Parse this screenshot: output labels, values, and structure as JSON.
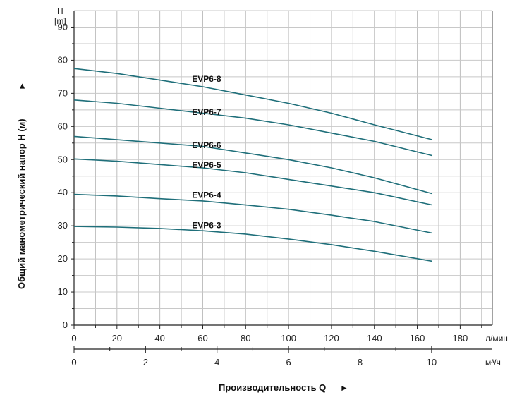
{
  "chart_data": {
    "type": "line",
    "title": "",
    "xlabel": "Производительность Q",
    "ylabel": "Общий манометрический напор H (м)",
    "y_unit": "H",
    "y_unit_bracket": "[m]",
    "x_unit": "л/мин",
    "x2_unit": "м³/ч",
    "arrow_glyph": "►",
    "ylim": [
      0,
      95
    ],
    "yticks": [
      0,
      10,
      20,
      30,
      40,
      50,
      60,
      70,
      80,
      90
    ],
    "xlim": [
      0,
      195
    ],
    "xticks": [
      0,
      20,
      40,
      60,
      80,
      100,
      120,
      140,
      160,
      180
    ],
    "x2ticks": [
      0,
      2,
      4,
      6,
      8,
      10
    ],
    "x2_factor": 16.667,
    "grid": true,
    "line_color": "#1f6f7a",
    "series": [
      {
        "name": "EVP6-8",
        "label_x": 55,
        "label_y": 73.5,
        "x": [
          0,
          20,
          40,
          60,
          80,
          100,
          120,
          140,
          167
        ],
        "y": [
          77.5,
          76,
          74,
          72,
          69.5,
          67,
          64,
          60.5,
          56
        ]
      },
      {
        "name": "EVP6-7",
        "label_x": 55,
        "label_y": 63.5,
        "x": [
          0,
          20,
          40,
          60,
          80,
          100,
          120,
          140,
          167
        ],
        "y": [
          68,
          67,
          65.5,
          64,
          62.5,
          60.5,
          58,
          55.5,
          51.2
        ]
      },
      {
        "name": "EVP6-6",
        "label_x": 55,
        "label_y": 53.5,
        "x": [
          0,
          20,
          40,
          60,
          80,
          100,
          120,
          140,
          167
        ],
        "y": [
          57,
          56,
          55,
          54,
          52,
          50,
          47.5,
          44.5,
          39.7
        ]
      },
      {
        "name": "EVP6-5",
        "label_x": 55,
        "label_y": 47.5,
        "x": [
          0,
          20,
          40,
          60,
          80,
          100,
          120,
          140,
          167
        ],
        "y": [
          50.2,
          49.5,
          48.5,
          47.5,
          46,
          44,
          42,
          40,
          36.3
        ]
      },
      {
        "name": "EVP6-4",
        "label_x": 55,
        "label_y": 38.5,
        "x": [
          0,
          20,
          40,
          60,
          80,
          100,
          120,
          140,
          167
        ],
        "y": [
          39.5,
          39,
          38.2,
          37.5,
          36.3,
          35,
          33.2,
          31.3,
          27.8
        ]
      },
      {
        "name": "EVP6-3",
        "label_x": 55,
        "label_y": 29.3,
        "x": [
          0,
          20,
          40,
          60,
          80,
          100,
          120,
          140,
          167
        ],
        "y": [
          29.8,
          29.6,
          29.2,
          28.5,
          27.5,
          26,
          24.3,
          22.3,
          19.3
        ]
      }
    ]
  }
}
